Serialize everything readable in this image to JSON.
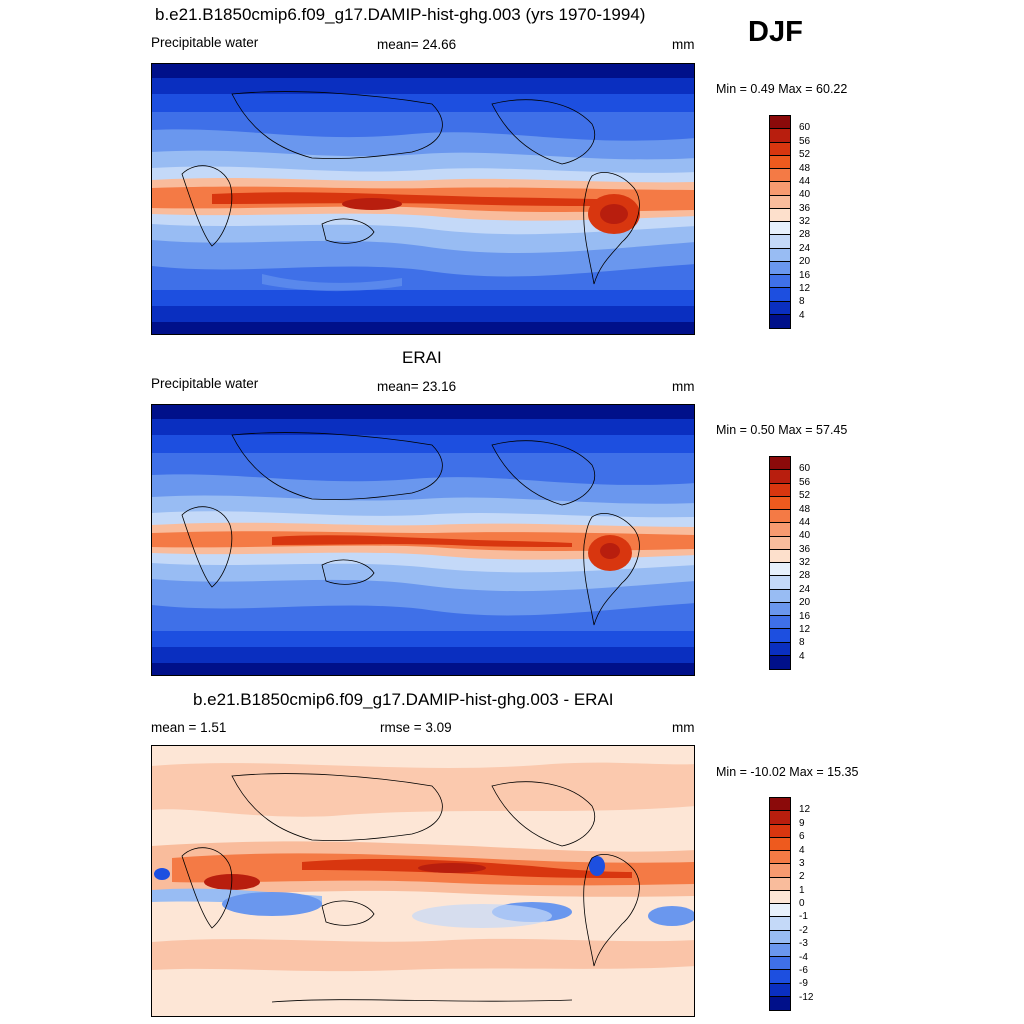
{
  "header": {
    "title": "b.e21.B1850cmip6.f09_g17.DAMIP-hist-ghg.003 (yrs 1970-1994)",
    "season": "DJF"
  },
  "panels": [
    {
      "id": "model",
      "title": "b.e21.B1850cmip6.f09_g17.DAMIP-hist-ghg.003 (yrs 1970-1994)",
      "left_label": "Precipitable water",
      "center_label": "mean=  24.66",
      "units": "mm",
      "minmax": "Min =   0.49 Max =  60.22",
      "mean": 24.66,
      "min": 0.49,
      "max": 60.22
    },
    {
      "id": "obs",
      "title": "ERAI",
      "left_label": "Precipitable water",
      "center_label": "mean=  23.16",
      "units": "mm",
      "minmax": "Min =   0.50 Max =  57.45",
      "mean": 23.16,
      "min": 0.5,
      "max": 57.45
    },
    {
      "id": "diff",
      "title": "b.e21.B1850cmip6.f09_g17.DAMIP-hist-ghg.003 - ERAI",
      "left_label": "mean =   1.51",
      "center_label": "rmse =   3.09",
      "units": "mm",
      "minmax": "Min = -10.02 Max =  15.35",
      "mean": 1.51,
      "rmse": 3.09,
      "min": -10.02,
      "max": 15.35
    }
  ],
  "colorbars": {
    "absolute": {
      "labels": [
        "60",
        "56",
        "52",
        "48",
        "44",
        "40",
        "36",
        "32",
        "28",
        "24",
        "20",
        "16",
        "12",
        "8",
        "4"
      ],
      "colors": [
        "#8b0a0a",
        "#b81e0e",
        "#d8360f",
        "#ee5a1e",
        "#f47a45",
        "#f79a70",
        "#f9bc9c",
        "#fde0cc",
        "#e6f0fc",
        "#c4d9f8",
        "#98bcf3",
        "#6a97ee",
        "#3f70e8",
        "#1d4fe0",
        "#0a2fc0",
        "#00108a"
      ]
    },
    "difference": {
      "labels": [
        "12",
        "9",
        "6",
        "4",
        "3",
        "2",
        "1",
        "0",
        "-1",
        "-2",
        "-3",
        "-4",
        "-6",
        "-9",
        "-12"
      ],
      "colors": [
        "#8b0a0a",
        "#b81e0e",
        "#d8360f",
        "#ee5a1e",
        "#f47a45",
        "#f79a70",
        "#f9bc9c",
        "#fde6d6",
        "#e8f1fc",
        "#c4d9f8",
        "#98bcf3",
        "#6a97ee",
        "#3f70e8",
        "#1d4fe0",
        "#0a2fc0",
        "#00108a"
      ]
    }
  },
  "chart_data": [
    {
      "type": "heatmap",
      "title": "b.e21.B1850cmip6.f09_g17.DAMIP-hist-ghg.003 (yrs 1970-1994)",
      "variable": "Precipitable water",
      "units": "mm",
      "season": "DJF",
      "mean": 24.66,
      "min": 0.49,
      "max": 60.22,
      "contour_levels": [
        4,
        8,
        12,
        16,
        20,
        24,
        28,
        32,
        36,
        40,
        44,
        48,
        52,
        56,
        60
      ]
    },
    {
      "type": "heatmap",
      "title": "ERAI",
      "variable": "Precipitable water",
      "units": "mm",
      "season": "DJF",
      "mean": 23.16,
      "min": 0.5,
      "max": 57.45,
      "contour_levels": [
        4,
        8,
        12,
        16,
        20,
        24,
        28,
        32,
        36,
        40,
        44,
        48,
        52,
        56,
        60
      ]
    },
    {
      "type": "heatmap",
      "title": "b.e21.B1850cmip6.f09_g17.DAMIP-hist-ghg.003 - ERAI",
      "units": "mm",
      "season": "DJF",
      "mean": 1.51,
      "rmse": 3.09,
      "min": -10.02,
      "max": 15.35,
      "contour_levels": [
        -12,
        -9,
        -6,
        -4,
        -3,
        -2,
        -1,
        0,
        1,
        2,
        3,
        4,
        6,
        9,
        12
      ]
    }
  ]
}
